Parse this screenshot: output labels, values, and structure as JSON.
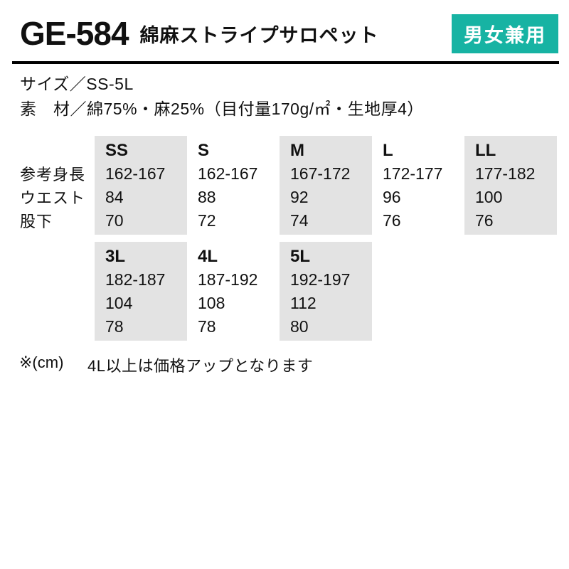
{
  "header": {
    "product_code": "GE-584",
    "product_name": "綿麻ストライプサロペット",
    "badge_label": "男女兼用"
  },
  "info": {
    "size_line": "サイズ／SS-5L",
    "material_line": "素　材／綿75%・麻25%（目付量170g/㎡・生地厚4）"
  },
  "size_chart": {
    "row_labels": [
      "参考身長",
      "ウエスト",
      "股下"
    ],
    "columns": [
      {
        "size": "SS",
        "height": "162-167",
        "waist": "84",
        "inseam": "70",
        "shaded": true,
        "row": 0
      },
      {
        "size": "S",
        "height": "162-167",
        "waist": "88",
        "inseam": "72",
        "shaded": false,
        "row": 0
      },
      {
        "size": "M",
        "height": "167-172",
        "waist": "92",
        "inseam": "74",
        "shaded": true,
        "row": 0
      },
      {
        "size": "L",
        "height": "172-177",
        "waist": "96",
        "inseam": "76",
        "shaded": false,
        "row": 0
      },
      {
        "size": "LL",
        "height": "177-182",
        "waist": "100",
        "inseam": "76",
        "shaded": true,
        "row": 0
      },
      {
        "size": "3L",
        "height": "182-187",
        "waist": "104",
        "inseam": "78",
        "shaded": true,
        "row": 1
      },
      {
        "size": "4L",
        "height": "187-192",
        "waist": "108",
        "inseam": "78",
        "shaded": false,
        "row": 1
      },
      {
        "size": "5L",
        "height": "192-197",
        "waist": "112",
        "inseam": "80",
        "shaded": true,
        "row": 1
      }
    ]
  },
  "footnote": {
    "unit_label": "※(cm)",
    "note": "4L以上は価格アップとなります"
  },
  "colors": {
    "badge_bg": "#17b3a3",
    "cell_shaded_bg": "#e3e3e3",
    "text": "#111111"
  }
}
